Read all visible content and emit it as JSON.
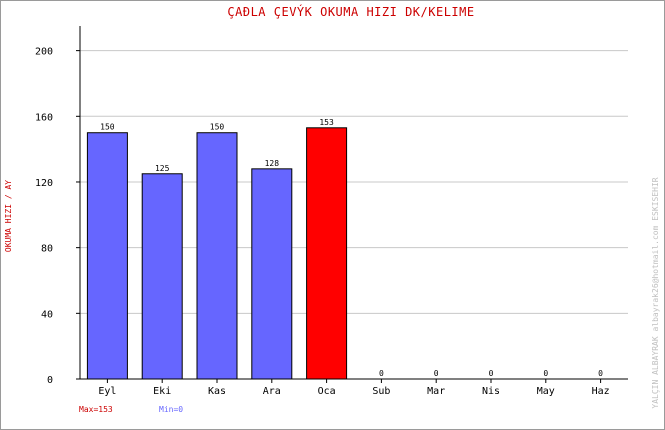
{
  "chart_data": {
    "type": "bar",
    "title": "ÇAÐLA ÇEVÝK   OKUMA HIZI  DK/KELIME",
    "ylabel": "OKUMA HIZI / AY",
    "xlabel": "",
    "categories": [
      "Eyl",
      "Eki",
      "Kas",
      "Ara",
      "Oca",
      "Sub",
      "Mar",
      "Nis",
      "May",
      "Haz"
    ],
    "values": [
      150,
      125,
      150,
      128,
      153,
      0,
      0,
      0,
      0,
      0
    ],
    "ylim": [
      0,
      215
    ],
    "yticks": [
      0,
      40,
      80,
      120,
      160,
      200
    ],
    "grid": true,
    "highlight_index": 4,
    "colors": {
      "bar": "#6666ff",
      "highlight": "#ff0000",
      "grid": "#c8c8c8",
      "title": "#cc0000",
      "max_text": "#cc0000",
      "min_text": "#6666ff",
      "watermark": "#c0c0c0"
    }
  },
  "footer": {
    "max_label": "Max=153",
    "min_label": "Min=0"
  },
  "watermark": "YALÇIN ALBAYRAK   albayrak26@hotmail.com   ESKISEHIR"
}
